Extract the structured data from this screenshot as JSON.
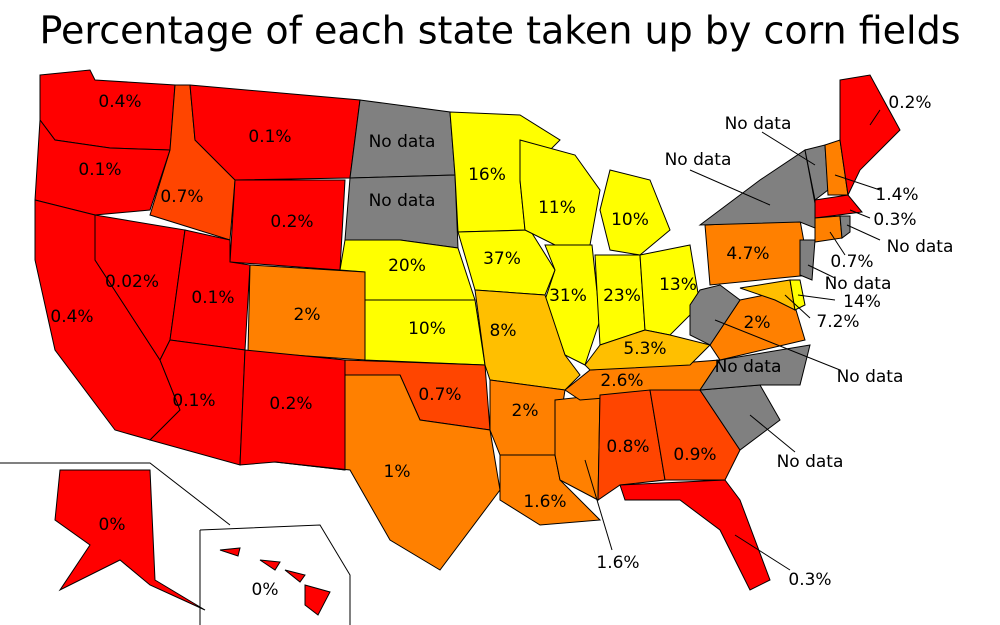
{
  "title": "Percentage of each state taken up by corn fields",
  "labels": [
    "0.4%",
    "0.1%",
    "No data",
    "16%",
    "0.1%",
    "0.7%",
    "No data",
    "11%",
    "10%",
    "0.2%",
    "20%",
    "37%",
    "0.02%",
    "0.1%",
    "0.4%",
    "2%",
    "31%",
    "23%",
    "13%",
    "4.7%",
    "10%",
    "8%",
    "5.3%",
    "2%",
    "0.7%",
    "2.6%",
    "No data",
    "0.1%",
    "0.2%",
    "2%",
    "0.8%",
    "0.9%",
    "1%",
    "1.6%",
    "0%",
    "0%",
    "1.6%",
    "0.3%",
    "No data",
    "No data",
    "7.2%",
    "14%",
    "No data",
    "0.7%",
    "No data",
    "0.3%",
    "1.4%",
    "No data",
    "No data",
    "0.2%"
  ]
}
